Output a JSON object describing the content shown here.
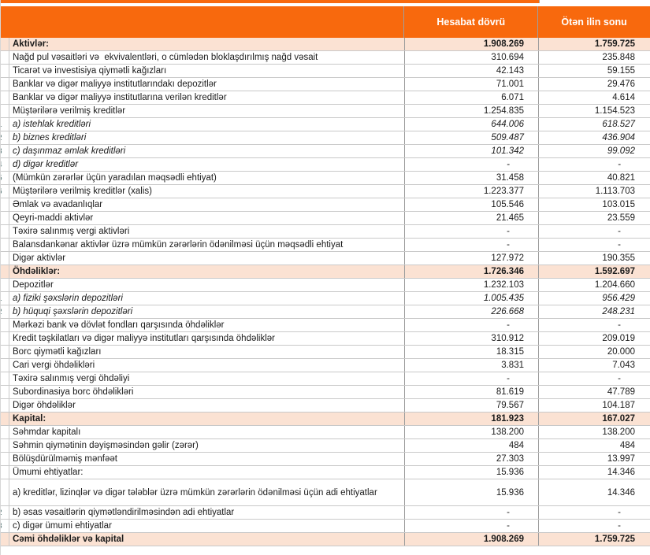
{
  "header": {
    "col1": "Hesabat dövrü",
    "col2": "Ötən ilin sonu"
  },
  "colors": {
    "accent_orange": "#F8690D",
    "section_row_bg": "#FBE2D3",
    "grid_line": "#C9C9C9",
    "header_text": "#FFFFFF"
  },
  "rows": [
    {
      "label": "Aktivlər:",
      "v1": "1.908.269",
      "v2": "1.759.725",
      "style": "section"
    },
    {
      "label": "Nağd pul vəsaitləri və  ekvivalentləri, o cümlədən bloklaşdırılmış nağd vəsait",
      "v1": "310.694",
      "v2": "235.848"
    },
    {
      "label": "Ticarət və investisiya qiymətli kağızları",
      "v1": "42.143",
      "v2": "59.155"
    },
    {
      "label": "Banklar və digər maliyyə institutlarındakı depozitlər",
      "v1": "71.001",
      "v2": "29.476"
    },
    {
      "label": "Banklar və digər maliyyə institutlarına verilən kreditlər",
      "v1": "6.071",
      "v2": "4.614"
    },
    {
      "label": "Müştərilərə verilmiş kreditlər",
      "v1": "1.254.835",
      "v2": "1.154.523"
    },
    {
      "label": "a) istehlak kreditləri",
      "v1": "644.006",
      "v2": "618.527",
      "style": "italic",
      "gutter": "1"
    },
    {
      "label": "b) biznes kreditləri",
      "v1": "509.487",
      "v2": "436.904",
      "style": "italic",
      "gutter": "2"
    },
    {
      "label": "c) daşınmaz əmlak kreditləri",
      "v1": "101.342",
      "v2": "99.092",
      "style": "italic",
      "gutter": "3"
    },
    {
      "label": "d) digər kreditlər",
      "v1": "-",
      "v2": "-",
      "style": "italic",
      "gutter": "4"
    },
    {
      "label": "(Mümkün zərərlər üçün yaradılan məqsədli ehtiyat)",
      "v1": "31.458",
      "v2": "40.821",
      "gutter": "5"
    },
    {
      "label": "Müştərilərə verilmiş kreditlər (xalis)",
      "v1": "1.223.377",
      "v2": "1.113.703",
      "gutter": "6"
    },
    {
      "label": "Əmlak və avadanlıqlar",
      "v1": "105.546",
      "v2": "103.015"
    },
    {
      "label": "Qeyri-maddi aktivlər",
      "v1": "21.465",
      "v2": "23.559"
    },
    {
      "label": "Təxirə salınmış vergi aktivləri",
      "v1": "-",
      "v2": "-"
    },
    {
      "label": "Balansdankənar aktivlər üzrə mümkün zərərlərin ödənilməsi üçün məqsədli ehtiyat",
      "v1": "-",
      "v2": "-"
    },
    {
      "label": "Digər aktivlər",
      "v1": "127.972",
      "v2": "190.355"
    },
    {
      "label": "Öhdəliklər:",
      "v1": "1.726.346",
      "v2": "1.592.697",
      "style": "section"
    },
    {
      "label": "Depozitlər",
      "v1": "1.232.103",
      "v2": "1.204.660"
    },
    {
      "label": "a) fiziki şəxslərin depozitləri",
      "v1": "1.005.435",
      "v2": "956.429",
      "style": "italic",
      "gutter": "1"
    },
    {
      "label": "b) hüquqi şəxslərin depozitləri",
      "v1": "226.668",
      "v2": "248.231",
      "style": "italic",
      "gutter": "2"
    },
    {
      "label": "Mərkəzi bank və dövlət fondları qarşısında öhdəliklər",
      "v1": "-",
      "v2": "-"
    },
    {
      "label": "Kredit təşkilatları və digər maliyyə institutları qarşısında öhdəliklər",
      "v1": "310.912",
      "v2": "209.019"
    },
    {
      "label": "Borc qiymətli kağızları",
      "v1": "18.315",
      "v2": "20.000"
    },
    {
      "label": "Cari vergi öhdəlikləri",
      "v1": "3.831",
      "v2": "7.043"
    },
    {
      "label": "Təxirə salınmış vergi öhdəliyi",
      "v1": "-",
      "v2": "-"
    },
    {
      "label": "Subordinasiya borc öhdəlikləri",
      "v1": "81.619",
      "v2": "47.789"
    },
    {
      "label": "Digər öhdəliklər",
      "v1": "79.567",
      "v2": "104.187"
    },
    {
      "label": "Kapital:",
      "v1": "181.923",
      "v2": "167.027",
      "style": "section"
    },
    {
      "label": "Səhmdar kapitalı",
      "v1": "138.200",
      "v2": "138.200"
    },
    {
      "label": "Səhmin qiymətinin dəyişməsindən gəlir (zərər)",
      "v1": "484",
      "v2": "484"
    },
    {
      "label": "Bölüşdürülməmiş mənfəət",
      "v1": "27.303",
      "v2": "13.997"
    },
    {
      "label": "Ümumi ehtiyatlar:",
      "v1": "15.936",
      "v2": "14.346"
    },
    {
      "label": "a) kreditlər, lizinqlər və digər tələblər üzrə mümkün zərərlərin ödənilməsi üçün adi ehtiyatlar",
      "v1": "15.936",
      "v2": "14.346",
      "tall": true
    },
    {
      "label": "b) əsas vəsaitlərin qiymətləndirilməsindən adi ehtiyatlar",
      "v1": "-",
      "v2": "-",
      "gutter": "2"
    },
    {
      "label": "c) digər ümumi ehtiyatlar",
      "v1": "-",
      "v2": "-",
      "gutter": "3"
    },
    {
      "label": "Cəmi öhdəliklər və kapital",
      "v1": "1.908.269",
      "v2": "1.759.725",
      "style": "section"
    }
  ]
}
